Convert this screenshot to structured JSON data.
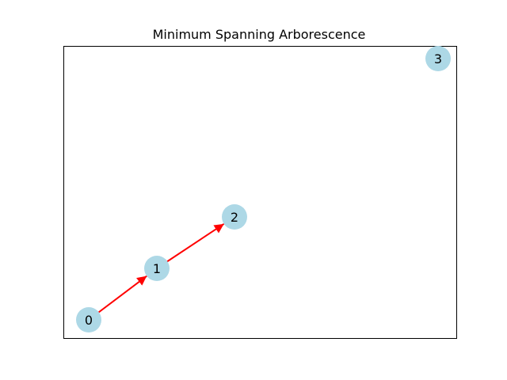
{
  "title": "Minimum Spanning Arborescence",
  "colors": {
    "node_fill": "#add8e6",
    "edge": "#ff0000",
    "frame": "#000000",
    "background": "#ffffff"
  },
  "nodes": [
    {
      "id": "0",
      "label": "0"
    },
    {
      "id": "1",
      "label": "1"
    },
    {
      "id": "2",
      "label": "2"
    },
    {
      "id": "3",
      "label": "3"
    }
  ],
  "edges": [
    {
      "source": "0",
      "target": "1"
    },
    {
      "source": "1",
      "target": "2"
    }
  ]
}
